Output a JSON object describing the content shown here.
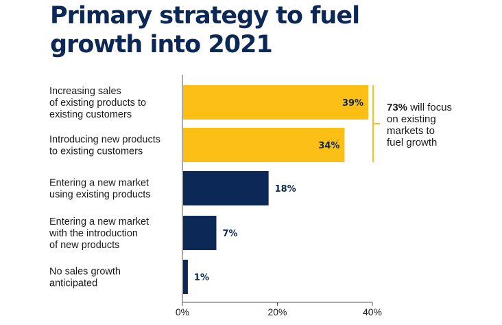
{
  "chart_data": {
    "type": "bar",
    "orientation": "horizontal",
    "title_lines": [
      "Primary strategy to fuel",
      "growth into 2021"
    ],
    "categories": [
      [
        "Increasing sales",
        "of existing products to",
        "existing customers"
      ],
      [
        "Introducing new products",
        "to existing customers"
      ],
      [
        "Entering a new market",
        "using existing products"
      ],
      [
        "Entering a new market",
        "with the introduction",
        "of new products"
      ],
      [
        "No sales growth",
        "anticipated"
      ]
    ],
    "values": [
      39,
      34,
      18,
      7,
      1
    ],
    "value_labels": [
      "39%",
      "34%",
      "18%",
      "7%",
      "1%"
    ],
    "bar_colors": [
      "#fbbf15",
      "#fbbf15",
      "#0c2856",
      "#0c2856",
      "#0c2856"
    ],
    "xlim": [
      0,
      40
    ],
    "x_ticks": [
      0,
      20,
      40
    ],
    "x_tick_labels": [
      "0%",
      "20%",
      "40%"
    ],
    "grid": false,
    "annotation": {
      "bold": "73%",
      "lines": [
        " will focus",
        "on existing",
        "markets to",
        "fuel growth"
      ],
      "bracket_color": "#fbbf15",
      "applies_to": [
        0,
        1
      ]
    },
    "colors": {
      "title": "#0c2856",
      "accent": "#fbbf15",
      "navy": "#0c2856"
    }
  }
}
